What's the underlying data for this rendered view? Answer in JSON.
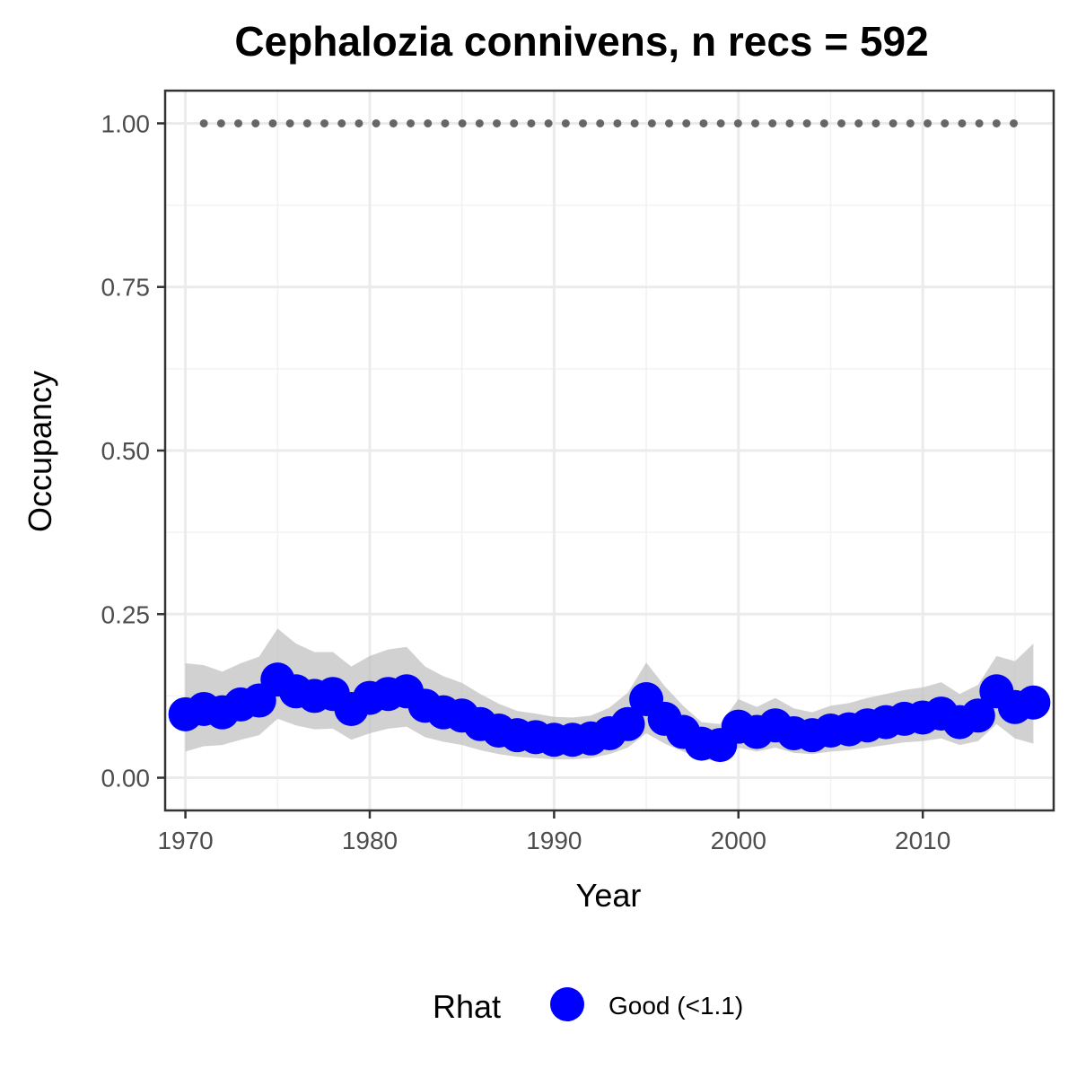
{
  "chart_data": {
    "type": "line",
    "title": "Cephalozia connivens, n recs = 592",
    "xlabel": "Year",
    "ylabel": "Occupancy",
    "xlim": [
      1968.9,
      2017.1
    ],
    "ylim": [
      -0.05,
      1.05
    ],
    "x_ticks": [
      1970,
      1980,
      1990,
      2000,
      2010
    ],
    "x_tick_labels": [
      "1970",
      "1980",
      "1990",
      "2000",
      "2010"
    ],
    "y_ticks": [
      0,
      0.25,
      0.5,
      0.75,
      1.0
    ],
    "y_tick_labels": [
      "0.00",
      "0.25",
      "0.50",
      "0.75",
      "1.00"
    ],
    "grid": true,
    "legend": {
      "title": "Rhat",
      "position": "bottom",
      "entries": [
        {
          "label": "Good (<1.1)",
          "color": "#0000ff"
        }
      ]
    },
    "colors": {
      "series": "#0000ff",
      "ribbon": "#bebebe",
      "reference_line": "#666666"
    },
    "years": [
      1970,
      1971,
      1972,
      1973,
      1974,
      1975,
      1976,
      1977,
      1978,
      1979,
      1980,
      1981,
      1982,
      1983,
      1984,
      1985,
      1986,
      1987,
      1988,
      1989,
      1990,
      1991,
      1992,
      1993,
      1994,
      1995,
      1996,
      1997,
      1998,
      1999,
      2000,
      2001,
      2002,
      2003,
      2004,
      2005,
      2006,
      2007,
      2008,
      2009,
      2010,
      2011,
      2012,
      2013,
      2014,
      2015,
      2016
    ],
    "series": [
      {
        "name": "Good (<1.1)",
        "values": [
          0.097,
          0.105,
          0.1,
          0.112,
          0.118,
          0.15,
          0.132,
          0.125,
          0.128,
          0.105,
          0.122,
          0.128,
          0.132,
          0.11,
          0.1,
          0.095,
          0.082,
          0.072,
          0.065,
          0.062,
          0.058,
          0.058,
          0.06,
          0.068,
          0.082,
          0.12,
          0.09,
          0.07,
          0.052,
          0.05,
          0.078,
          0.07,
          0.08,
          0.068,
          0.065,
          0.072,
          0.074,
          0.08,
          0.085,
          0.09,
          0.092,
          0.098,
          0.085,
          0.095,
          0.132,
          0.108,
          0.115
        ],
        "lower": [
          0.04,
          0.048,
          0.05,
          0.058,
          0.065,
          0.09,
          0.08,
          0.074,
          0.075,
          0.058,
          0.068,
          0.075,
          0.078,
          0.062,
          0.055,
          0.05,
          0.042,
          0.036,
          0.032,
          0.03,
          0.028,
          0.028,
          0.03,
          0.036,
          0.046,
          0.068,
          0.052,
          0.04,
          0.028,
          0.026,
          0.046,
          0.04,
          0.046,
          0.038,
          0.036,
          0.04,
          0.042,
          0.046,
          0.05,
          0.054,
          0.056,
          0.06,
          0.05,
          0.056,
          0.082,
          0.06,
          0.052
        ],
        "upper": [
          0.175,
          0.172,
          0.162,
          0.175,
          0.185,
          0.228,
          0.205,
          0.192,
          0.192,
          0.17,
          0.186,
          0.196,
          0.2,
          0.17,
          0.155,
          0.145,
          0.128,
          0.113,
          0.102,
          0.098,
          0.093,
          0.092,
          0.095,
          0.107,
          0.13,
          0.176,
          0.14,
          0.11,
          0.085,
          0.082,
          0.12,
          0.108,
          0.122,
          0.106,
          0.1,
          0.11,
          0.114,
          0.122,
          0.128,
          0.134,
          0.138,
          0.146,
          0.128,
          0.142,
          0.186,
          0.178,
          0.205
        ]
      }
    ],
    "reference_line": {
      "y": 1.0,
      "x_start": 1971,
      "x_end": 2015,
      "style": "dotted"
    }
  }
}
